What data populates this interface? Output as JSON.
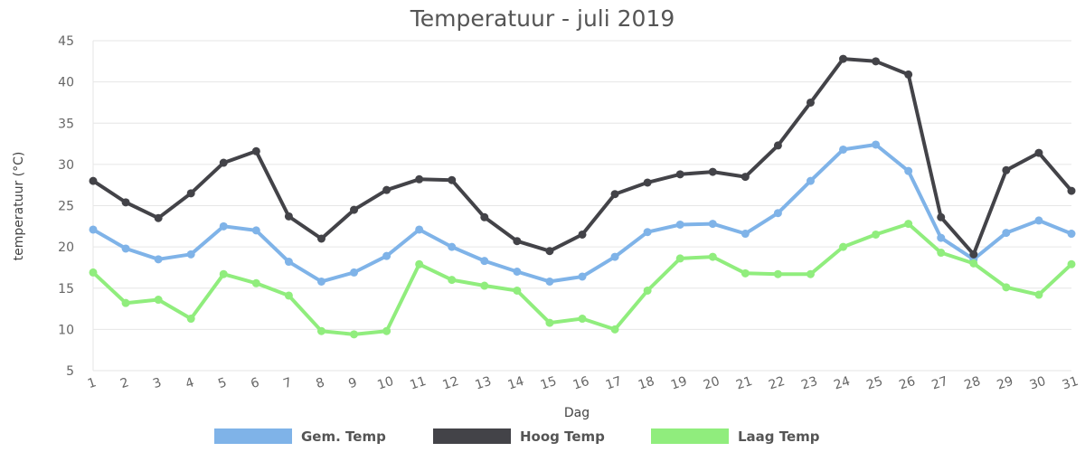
{
  "chart_data": {
    "type": "line",
    "title": "Temperatuur - juli 2019",
    "xlabel": "Dag",
    "ylabel": "temperatuur (°C)",
    "ylim": [
      5,
      45
    ],
    "yticks": [
      5,
      10,
      15,
      20,
      25,
      30,
      35,
      40,
      45
    ],
    "grid": true,
    "legend_position": "bottom",
    "categories": [
      "1",
      "2",
      "3",
      "4",
      "5",
      "6",
      "7",
      "8",
      "9",
      "10",
      "11",
      "12",
      "13",
      "14",
      "15",
      "16",
      "17",
      "18",
      "19",
      "20",
      "21",
      "22",
      "23",
      "24",
      "25",
      "26",
      "27",
      "28",
      "29",
      "30",
      "31"
    ],
    "series": [
      {
        "name": "Gem. Temp",
        "color": "#7fb3e8",
        "values": [
          22.1,
          19.8,
          18.5,
          19.1,
          22.5,
          22.0,
          18.2,
          15.8,
          16.9,
          18.9,
          22.1,
          20.0,
          18.3,
          17.0,
          15.8,
          16.4,
          18.8,
          21.8,
          22.7,
          22.8,
          21.6,
          24.1,
          28.0,
          31.8,
          32.4,
          29.2,
          21.1,
          18.5,
          21.7,
          23.2,
          21.6
        ]
      },
      {
        "name": "Hoog Temp",
        "color": "#434348",
        "values": [
          28.0,
          25.4,
          23.5,
          26.5,
          30.2,
          31.6,
          23.7,
          21.0,
          24.5,
          26.9,
          28.2,
          28.1,
          23.6,
          20.7,
          19.5,
          21.5,
          26.4,
          27.8,
          28.8,
          29.1,
          28.5,
          32.3,
          37.5,
          42.8,
          42.5,
          40.9,
          23.6,
          19.1,
          29.3,
          31.4,
          26.8
        ]
      },
      {
        "name": "Laag Temp",
        "color": "#90ed7d",
        "values": [
          16.9,
          13.2,
          13.6,
          11.3,
          16.7,
          15.6,
          14.1,
          9.8,
          9.4,
          9.8,
          17.9,
          16.0,
          15.3,
          14.7,
          10.8,
          11.3,
          10.0,
          14.7,
          18.6,
          18.8,
          16.8,
          16.7,
          16.7,
          20.0,
          21.5,
          22.8,
          19.3,
          18.0,
          15.1,
          14.2,
          17.9
        ]
      }
    ]
  }
}
